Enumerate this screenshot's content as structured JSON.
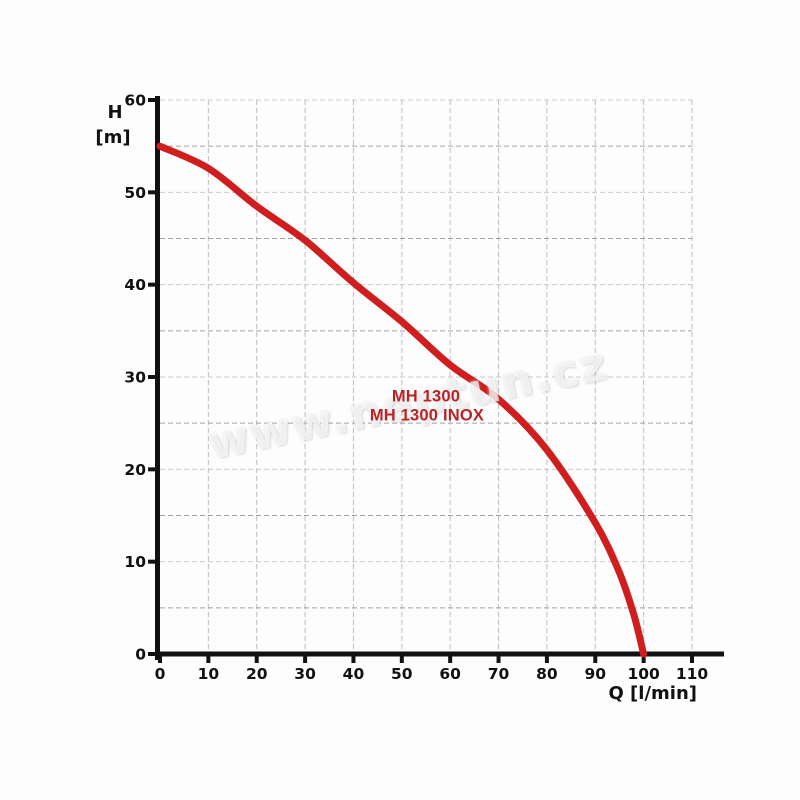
{
  "chart_data": {
    "type": "line",
    "title": "",
    "xlabel": "Q [l/min]",
    "ylabel_lines": [
      "H",
      "[m]"
    ],
    "xlim": [
      0,
      110
    ],
    "ylim": [
      0,
      60
    ],
    "x_ticks": [
      0,
      10,
      20,
      30,
      40,
      50,
      60,
      70,
      80,
      90,
      100,
      110
    ],
    "y_ticks": [
      0,
      10,
      20,
      30,
      40,
      50,
      60
    ],
    "grid": {
      "x_step": 10,
      "y_step": 5,
      "style": "dashed",
      "on": true
    },
    "legend_position": "none",
    "axis_color": "#111111",
    "tick_label_color": "#111111",
    "grid_color_vertical": "#bdbdbd",
    "grid_color_minor": "#a2a2a2",
    "grid_color_major": "#c9c9c9",
    "series": [
      {
        "name": "MH 1300 / MH 1300 INOX pump curve",
        "color": "#d01d1d",
        "points": [
          [
            0,
            55.0
          ],
          [
            10,
            52.6
          ],
          [
            20,
            48.5
          ],
          [
            30,
            44.8
          ],
          [
            40,
            40.2
          ],
          [
            50,
            36.0
          ],
          [
            60,
            31.3
          ],
          [
            70,
            27.6
          ],
          [
            80,
            22.1
          ],
          [
            90,
            14.2
          ],
          [
            95,
            8.8
          ],
          [
            98,
            4.2
          ],
          [
            100,
            0
          ]
        ]
      }
    ],
    "annotations": [
      {
        "text": "MH 1300",
        "q": 55.0,
        "h": 27.8,
        "color": "#b92227"
      },
      {
        "text": "MH 1300 INOX",
        "q": 55.2,
        "h": 25.8,
        "color": "#b92227"
      }
    ]
  },
  "watermark": {
    "text": "www.neptun.cz",
    "color": "rgba(255,255,255,0.66)"
  }
}
